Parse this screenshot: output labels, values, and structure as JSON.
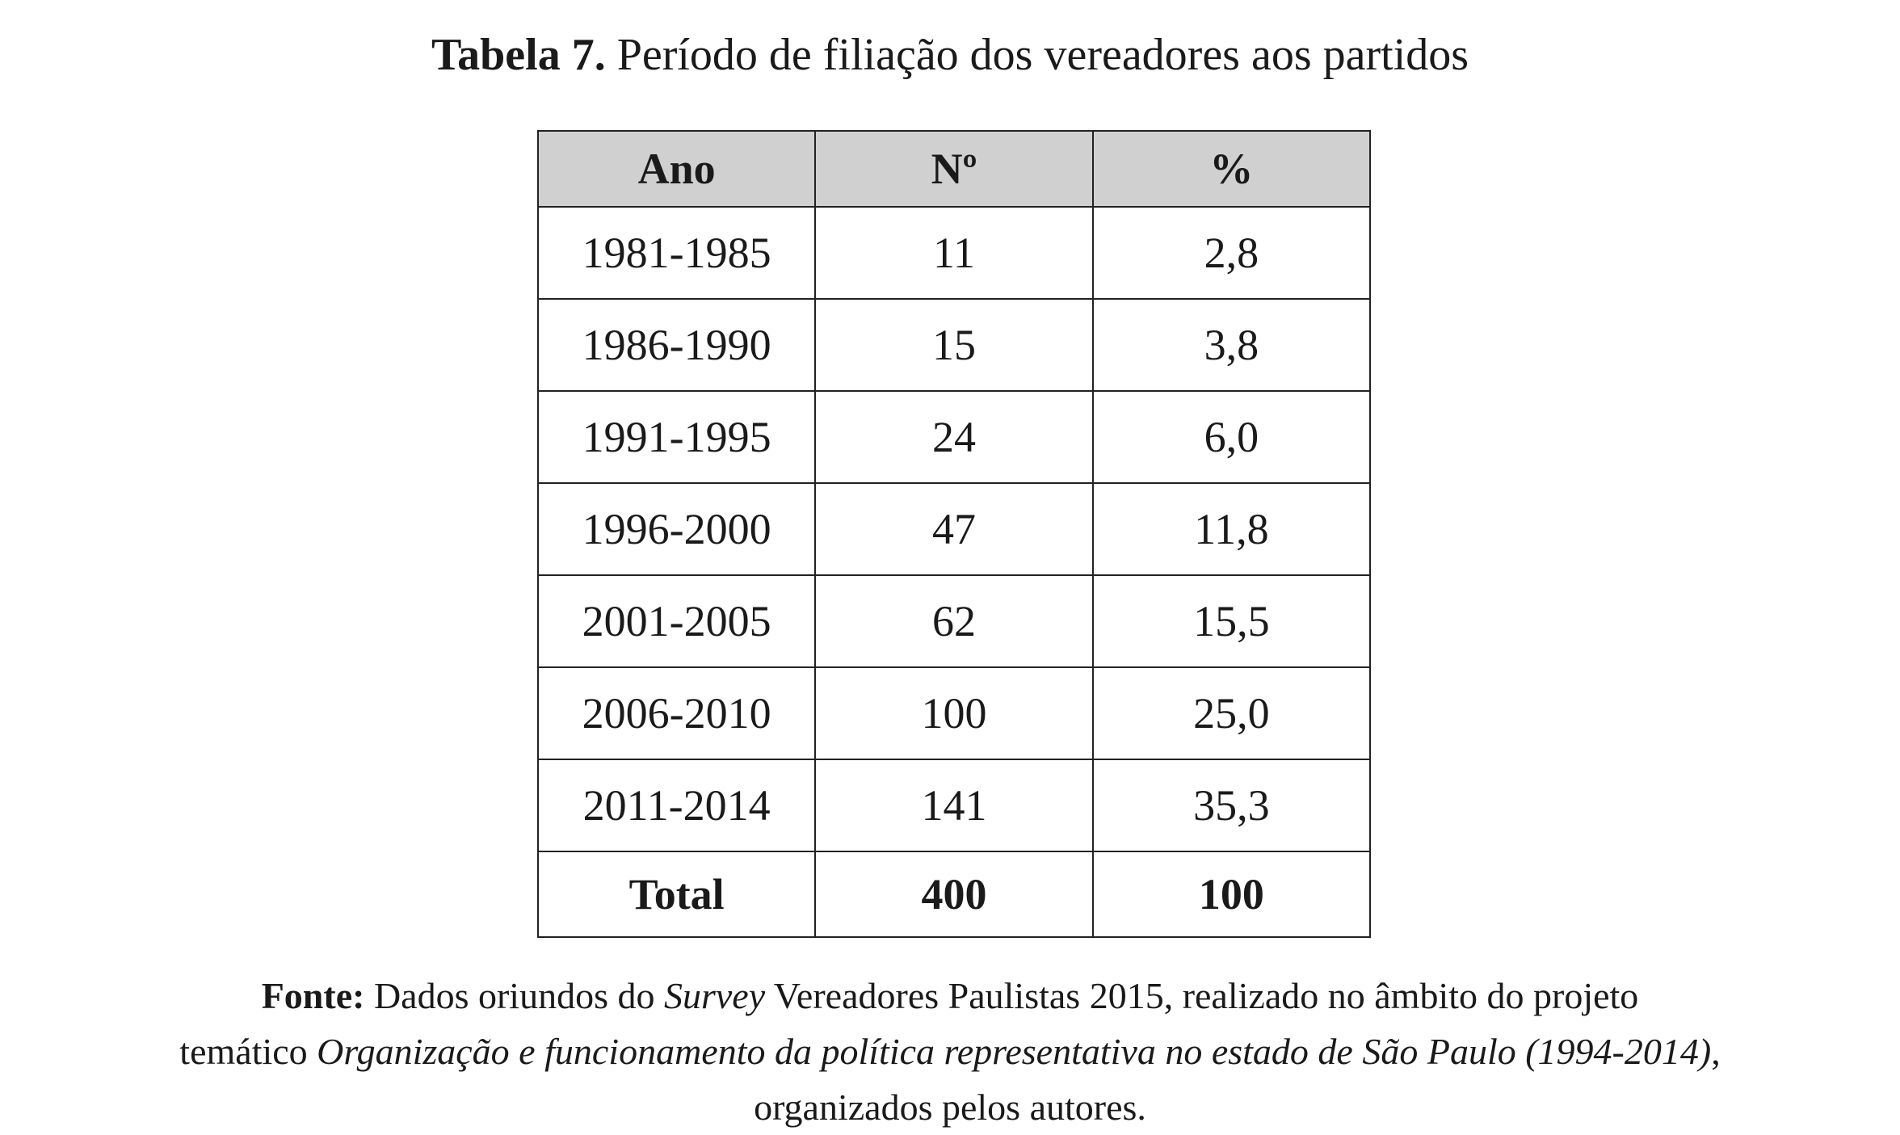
{
  "title": {
    "label": "Tabela 7.",
    "text": "Período de filiação dos vereadores aos partidos"
  },
  "table": {
    "header": [
      "Ano",
      "Nº",
      "%"
    ],
    "rows": [
      [
        "1981-1985",
        "11",
        "2,8"
      ],
      [
        "1986-1990",
        "15",
        "3,8"
      ],
      [
        "1991-1995",
        "24",
        "6,0"
      ],
      [
        "1996-2000",
        "47",
        "11,8"
      ],
      [
        "2001-2005",
        "62",
        "15,5"
      ],
      [
        "2006-2010",
        "100",
        "25,0"
      ],
      [
        "2011-2014",
        "141",
        "35,3"
      ]
    ],
    "total": [
      "Total",
      "400",
      "100"
    ]
  },
  "source": {
    "label": "Fonte:",
    "parts": [
      " Dados oriundos do ",
      "Survey",
      " Vereadores Paulistas 2015, realizado no âmbito do projeto",
      "temático ",
      "Organização e funcionamento da política representativa no estado de São Paulo (1994-2014)",
      ",",
      "organizados pelos autores."
    ]
  }
}
